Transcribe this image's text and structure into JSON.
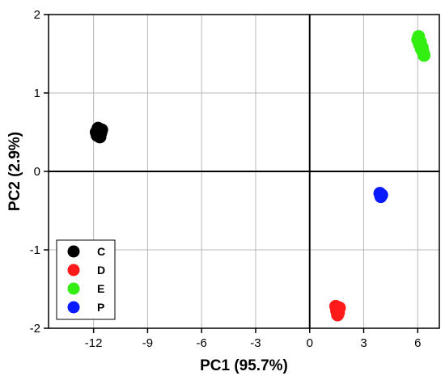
{
  "chart_data": {
    "type": "scatter",
    "title": "",
    "xlabel": "PC1 (95.7%)",
    "ylabel": "PC2 (2.9%)",
    "xlim": [
      -14.5,
      7.2
    ],
    "ylim": [
      -2,
      2
    ],
    "xticks": [
      -12,
      -9,
      -6,
      -3,
      0,
      3,
      6
    ],
    "xtick_labels": [
      "-12",
      "-9",
      "-6",
      "-3",
      "0",
      "3",
      "6"
    ],
    "yticks": [
      -2,
      -1,
      0,
      1,
      2
    ],
    "ytick_labels": [
      "-2",
      "-1",
      "0",
      "1",
      "2"
    ],
    "grid": true,
    "zero_lines": true,
    "legend_position": "bottom-left",
    "series": [
      {
        "name": "C",
        "color": "#000000",
        "points": [
          [
            -11.8,
            0.46
          ],
          [
            -11.7,
            0.52
          ],
          [
            -11.6,
            0.49
          ],
          [
            -11.75,
            0.55
          ],
          [
            -11.65,
            0.44
          ],
          [
            -11.55,
            0.53
          ],
          [
            -11.85,
            0.5
          ]
        ]
      },
      {
        "name": "D",
        "color": "#ff1a1a",
        "points": [
          [
            1.5,
            -1.75
          ],
          [
            1.6,
            -1.8
          ],
          [
            1.45,
            -1.72
          ],
          [
            1.65,
            -1.74
          ],
          [
            1.55,
            -1.83
          ],
          [
            1.5,
            -1.78
          ]
        ]
      },
      {
        "name": "E",
        "color": "#33ee11",
        "points": [
          [
            6.0,
            1.68
          ],
          [
            6.1,
            1.62
          ],
          [
            6.2,
            1.56
          ],
          [
            6.3,
            1.52
          ],
          [
            6.35,
            1.48
          ],
          [
            6.05,
            1.72
          ],
          [
            6.15,
            1.65
          ],
          [
            6.25,
            1.58
          ]
        ]
      },
      {
        "name": "P",
        "color": "#0a1aff",
        "points": [
          [
            3.9,
            -0.28
          ],
          [
            4.0,
            -0.3
          ],
          [
            3.95,
            -0.32
          ]
        ]
      }
    ]
  }
}
